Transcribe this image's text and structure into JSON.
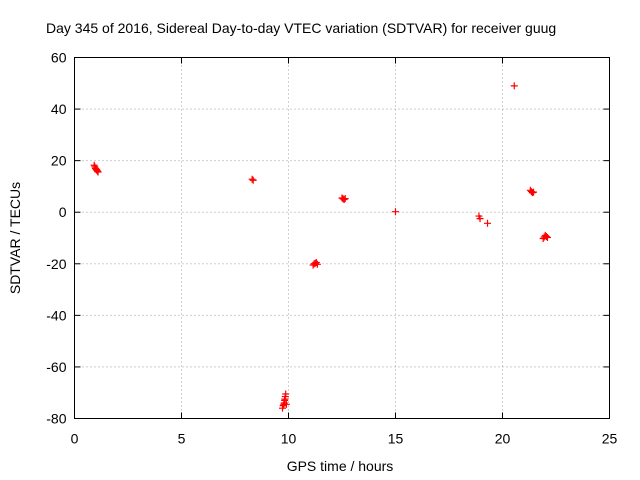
{
  "chart_data": {
    "type": "scatter",
    "title": "Day 345 of 2016, Sidereal Day-to-day VTEC variation (SDTVAR) for receiver guug",
    "xlabel": "GPS time / hours",
    "ylabel": "SDTVAR / TECUs",
    "xlim": [
      0,
      25
    ],
    "ylim": [
      -80,
      60
    ],
    "xticks": [
      0,
      5,
      10,
      15,
      20,
      25
    ],
    "yticks": [
      -80,
      -60,
      -40,
      -20,
      0,
      20,
      40,
      60
    ],
    "xtick_labels": [
      "0",
      "5",
      "10",
      "15",
      "20",
      "25"
    ],
    "ytick_labels": [
      "-80",
      "-60",
      "-40",
      "-20",
      "0",
      "20",
      "40",
      "60"
    ],
    "grid": true,
    "marker": "plus",
    "color": "#ff0000",
    "series": [
      {
        "name": "SDTVAR",
        "points": [
          [
            0.92,
            18.2
          ],
          [
            0.95,
            17.6
          ],
          [
            0.98,
            17.0
          ],
          [
            1.0,
            16.8
          ],
          [
            1.03,
            16.5
          ],
          [
            1.05,
            16.2
          ],
          [
            1.08,
            15.9
          ],
          [
            1.1,
            15.6
          ],
          [
            8.3,
            12.8
          ],
          [
            8.35,
            12.4
          ],
          [
            11.15,
            -20.5
          ],
          [
            11.2,
            -20.0
          ],
          [
            11.25,
            -19.8
          ],
          [
            11.3,
            -19.5
          ],
          [
            11.35,
            -20.2
          ],
          [
            9.72,
            -76.0
          ],
          [
            9.75,
            -75.0
          ],
          [
            9.78,
            -74.5
          ],
          [
            9.8,
            -74.0
          ],
          [
            9.82,
            -73.0
          ],
          [
            9.83,
            -72.5
          ],
          [
            9.85,
            -71.5
          ],
          [
            9.87,
            -70.5
          ],
          [
            9.9,
            -74.5
          ],
          [
            12.5,
            5.5
          ],
          [
            12.55,
            5.2
          ],
          [
            12.6,
            4.9
          ],
          [
            12.65,
            5.3
          ],
          [
            15.0,
            0.2
          ],
          [
            18.9,
            -1.5
          ],
          [
            18.95,
            -2.5
          ],
          [
            19.3,
            -4.3
          ],
          [
            20.55,
            49.0
          ],
          [
            21.3,
            8.5
          ],
          [
            21.35,
            8.0
          ],
          [
            21.4,
            7.6
          ],
          [
            21.45,
            7.8
          ],
          [
            21.9,
            -10.2
          ],
          [
            21.95,
            -9.6
          ],
          [
            22.0,
            -9.0
          ],
          [
            22.05,
            -9.4
          ],
          [
            22.1,
            -9.8
          ]
        ]
      }
    ]
  }
}
